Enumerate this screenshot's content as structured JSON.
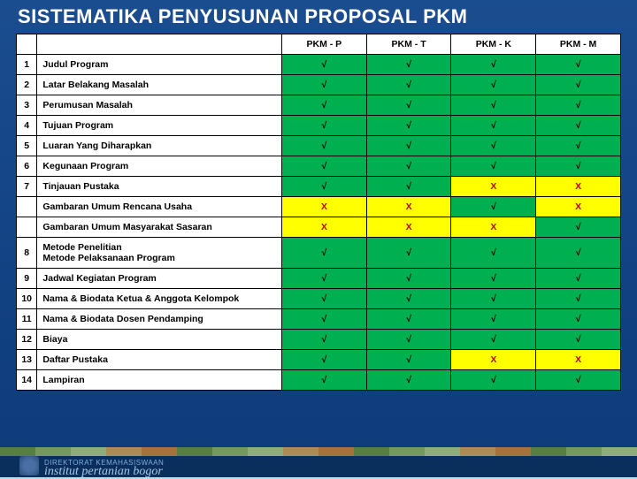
{
  "title": "SISTEMATIKA PENYUSUNAN PROPOSAL PKM",
  "columns": [
    "PKM - P",
    "PKM - T",
    "PKM - K",
    "PKM - M"
  ],
  "check": "√",
  "cross": "X",
  "colors": {
    "check_bg": "#00b050",
    "cross_bg": "#ffff00",
    "check_fg": "#000000",
    "cross_fg": "#c00000"
  },
  "rows": [
    {
      "n": "1",
      "label": "Judul Program",
      "marks": [
        "c",
        "c",
        "c",
        "c"
      ]
    },
    {
      "n": "2",
      "label": "Latar Belakang Masalah",
      "marks": [
        "c",
        "c",
        "c",
        "c"
      ]
    },
    {
      "n": "3",
      "label": "Perumusan Masalah",
      "marks": [
        "c",
        "c",
        "c",
        "c"
      ]
    },
    {
      "n": "4",
      "label": "Tujuan Program",
      "marks": [
        "c",
        "c",
        "c",
        "c"
      ]
    },
    {
      "n": "5",
      "label": "Luaran Yang Diharapkan",
      "marks": [
        "c",
        "c",
        "c",
        "c"
      ]
    },
    {
      "n": "6",
      "label": "Kegunaan Program",
      "marks": [
        "c",
        "c",
        "c",
        "c"
      ]
    },
    {
      "n": "7",
      "label": "Tinjauan Pustaka",
      "marks": [
        "c",
        "c",
        "x",
        "x"
      ]
    },
    {
      "n": "",
      "label": "Gambaran Umum Rencana Usaha",
      "marks": [
        "x",
        "x",
        "c",
        "x"
      ]
    },
    {
      "n": "",
      "label": "Gambaran Umum Masyarakat Sasaran",
      "marks": [
        "x",
        "x",
        "x",
        "c"
      ]
    },
    {
      "n": "8",
      "label": "Metode Penelitian\nMetode Pelaksanaan Program",
      "marks": [
        "c",
        "c",
        "c",
        "c"
      ]
    },
    {
      "n": "9",
      "label": "Jadwal Kegiatan Program",
      "marks": [
        "c",
        "c",
        "c",
        "c"
      ]
    },
    {
      "n": "10",
      "label": "Nama & Biodata Ketua & Anggota Kelompok",
      "marks": [
        "c",
        "c",
        "c",
        "c"
      ]
    },
    {
      "n": "11",
      "label": "Nama & Biodata Dosen Pendamping",
      "marks": [
        "c",
        "c",
        "c",
        "c"
      ]
    },
    {
      "n": "12",
      "label": "Biaya",
      "marks": [
        "c",
        "c",
        "c",
        "c"
      ]
    },
    {
      "n": "13",
      "label": "Daftar Pustaka",
      "marks": [
        "c",
        "c",
        "x",
        "x"
      ]
    },
    {
      "n": "14",
      "label": "Lampiran",
      "marks": [
        "c",
        "c",
        "c",
        "c"
      ]
    }
  ],
  "footer": {
    "line1": "DIREKTORAT KEMAHASISWAAN",
    "line2": "institut pertanian bogor"
  }
}
